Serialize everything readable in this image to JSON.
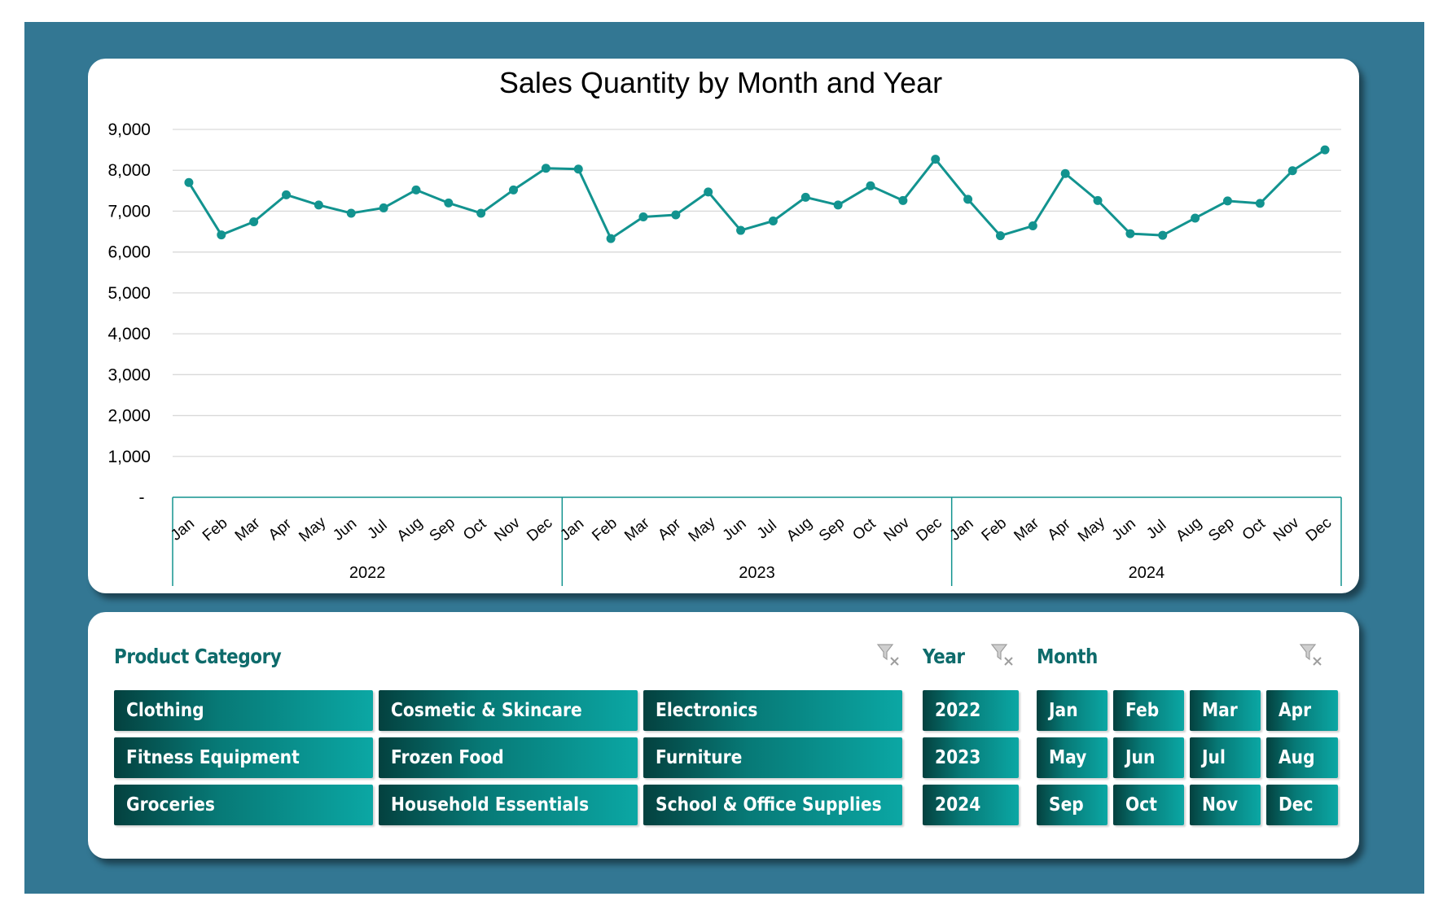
{
  "chart_data": {
    "type": "line",
    "title": "Sales Quantity by Month and Year",
    "xlabel": "",
    "ylabel": "",
    "ylim": [
      0,
      9000
    ],
    "yticks": [
      "-",
      "1,000",
      "2,000",
      "3,000",
      "4,000",
      "5,000",
      "6,000",
      "7,000",
      "8,000",
      "9,000"
    ],
    "grid": true,
    "line_color": "#12938f",
    "years": [
      "2022",
      "2023",
      "2024"
    ],
    "months": [
      "Jan",
      "Feb",
      "Mar",
      "Apr",
      "May",
      "Jun",
      "Jul",
      "Aug",
      "Sep",
      "Oct",
      "Nov",
      "Dec"
    ],
    "series": [
      {
        "values": [
          7700,
          6420,
          6740,
          7400,
          7150,
          6950,
          7080,
          7520,
          7200,
          6950,
          7520,
          8050,
          8030,
          6330,
          6860,
          6910,
          7470,
          6530,
          6760,
          7340,
          7150,
          7620,
          7260,
          8270,
          7290,
          6400,
          6640,
          7920,
          7260,
          6450,
          6410,
          6830,
          7250,
          7190,
          7990,
          8500
        ]
      }
    ]
  },
  "slicers": {
    "category": {
      "title": "Product Category",
      "items": [
        "Clothing",
        "Cosmetic & Skincare",
        "Electronics",
        "Fitness Equipment",
        "Frozen Food",
        "Furniture",
        "Groceries",
        "Household Essentials",
        "School & Office Supplies"
      ]
    },
    "year": {
      "title": "Year",
      "items": [
        "2022",
        "2023",
        "2024"
      ]
    },
    "month": {
      "title": "Month",
      "items": [
        "Jan",
        "Feb",
        "Mar",
        "Apr",
        "May",
        "Jun",
        "Jul",
        "Aug",
        "Sep",
        "Oct",
        "Nov",
        "Dec"
      ]
    },
    "clear_icon": "clear-filter-icon"
  }
}
